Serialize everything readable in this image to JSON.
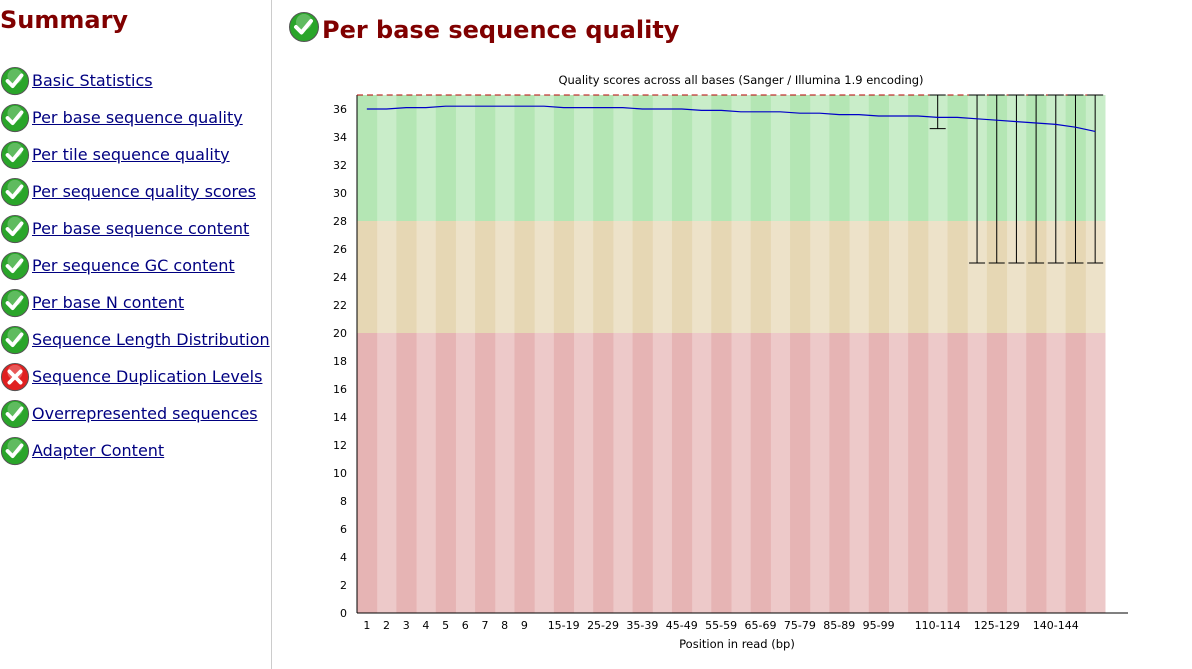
{
  "sidebar": {
    "heading": "Summary",
    "items": [
      {
        "label": "Basic Statistics",
        "status": "pass"
      },
      {
        "label": "Per base sequence quality",
        "status": "pass"
      },
      {
        "label": "Per tile sequence quality",
        "status": "pass"
      },
      {
        "label": "Per sequence quality scores",
        "status": "pass"
      },
      {
        "label": "Per base sequence content",
        "status": "pass"
      },
      {
        "label": "Per sequence GC content",
        "status": "pass"
      },
      {
        "label": "Per base N content",
        "status": "pass"
      },
      {
        "label": "Sequence Length Distribution",
        "status": "pass"
      },
      {
        "label": "Sequence Duplication Levels",
        "status": "fail"
      },
      {
        "label": "Overrepresented sequences",
        "status": "pass"
      },
      {
        "label": "Adapter Content",
        "status": "pass"
      }
    ]
  },
  "main": {
    "title": "Per base sequence quality",
    "status": "pass"
  },
  "colors": {
    "heading": "#800000",
    "link": "#000080",
    "pass": "#2aa52a",
    "fail": "#e02020",
    "zone_good": "#b4e6b4",
    "zone_mid": "#e6d7b4",
    "zone_bad": "#e6b4b4",
    "mean_line": "#0000c8",
    "whisker": "#000000",
    "top_dash": "#b40000"
  },
  "chart_data": {
    "type": "line",
    "title": "Quality scores across all bases (Sanger / Illumina 1.9 encoding)",
    "xlabel": "Position in read (bp)",
    "ylabel": "",
    "ylim": [
      0,
      37
    ],
    "yticks": [
      0,
      2,
      4,
      6,
      8,
      10,
      12,
      14,
      16,
      18,
      20,
      22,
      24,
      26,
      28,
      30,
      32,
      34,
      36
    ],
    "zones": {
      "bad_below": 20,
      "mid_below": 28
    },
    "categories": [
      "1",
      "2",
      "3",
      "4",
      "5",
      "6",
      "7",
      "8",
      "9",
      "10-14",
      "15-19",
      "20-24",
      "25-29",
      "30-34",
      "35-39",
      "40-44",
      "45-49",
      "50-54",
      "55-59",
      "60-64",
      "65-69",
      "70-74",
      "75-79",
      "80-84",
      "85-89",
      "90-94",
      "95-99",
      "100-104",
      "105-109",
      "110-114",
      "115-119",
      "120-124",
      "125-129",
      "130-134",
      "135-139",
      "140-144",
      "145-149",
      "150-151"
    ],
    "tick_labels": [
      "1",
      "2",
      "3",
      "4",
      "5",
      "6",
      "7",
      "8",
      "9",
      "",
      "15-19",
      "",
      "25-29",
      "",
      "35-39",
      "",
      "45-49",
      "",
      "55-59",
      "",
      "65-69",
      "",
      "75-79",
      "",
      "85-89",
      "",
      "95-99",
      "",
      "",
      "110-114",
      "",
      "",
      "125-129",
      "",
      "",
      "140-144",
      "",
      ""
    ],
    "series": [
      {
        "mean": [
          36.0,
          36.0,
          36.1,
          36.1,
          36.2,
          36.2,
          36.2,
          36.2,
          36.2,
          36.2,
          36.1,
          36.1,
          36.1,
          36.1,
          36.0,
          36.0,
          36.0,
          35.9,
          35.9,
          35.8,
          35.8,
          35.8,
          35.7,
          35.7,
          35.6,
          35.6,
          35.5,
          35.5,
          35.5,
          35.4,
          35.4,
          35.3,
          35.2,
          35.1,
          35.0,
          34.9,
          34.7,
          34.4
        ],
        "upper": [
          37,
          37,
          37,
          37,
          37,
          37,
          37,
          37,
          37,
          37,
          37,
          37,
          37,
          37,
          37,
          37,
          37,
          37,
          37,
          37,
          37,
          37,
          37,
          37,
          37,
          37,
          37,
          37,
          37,
          37,
          37,
          37,
          37,
          37,
          37,
          37,
          37,
          37
        ],
        "lower": [
          37,
          37,
          37,
          37,
          37,
          37,
          37,
          37,
          37,
          37,
          37,
          37,
          37,
          37,
          37,
          37,
          37,
          37,
          37,
          37,
          37,
          37,
          37,
          37,
          37,
          37,
          37,
          37,
          37,
          34.6,
          37,
          25,
          25,
          25,
          25,
          25,
          25,
          25
        ]
      }
    ]
  }
}
